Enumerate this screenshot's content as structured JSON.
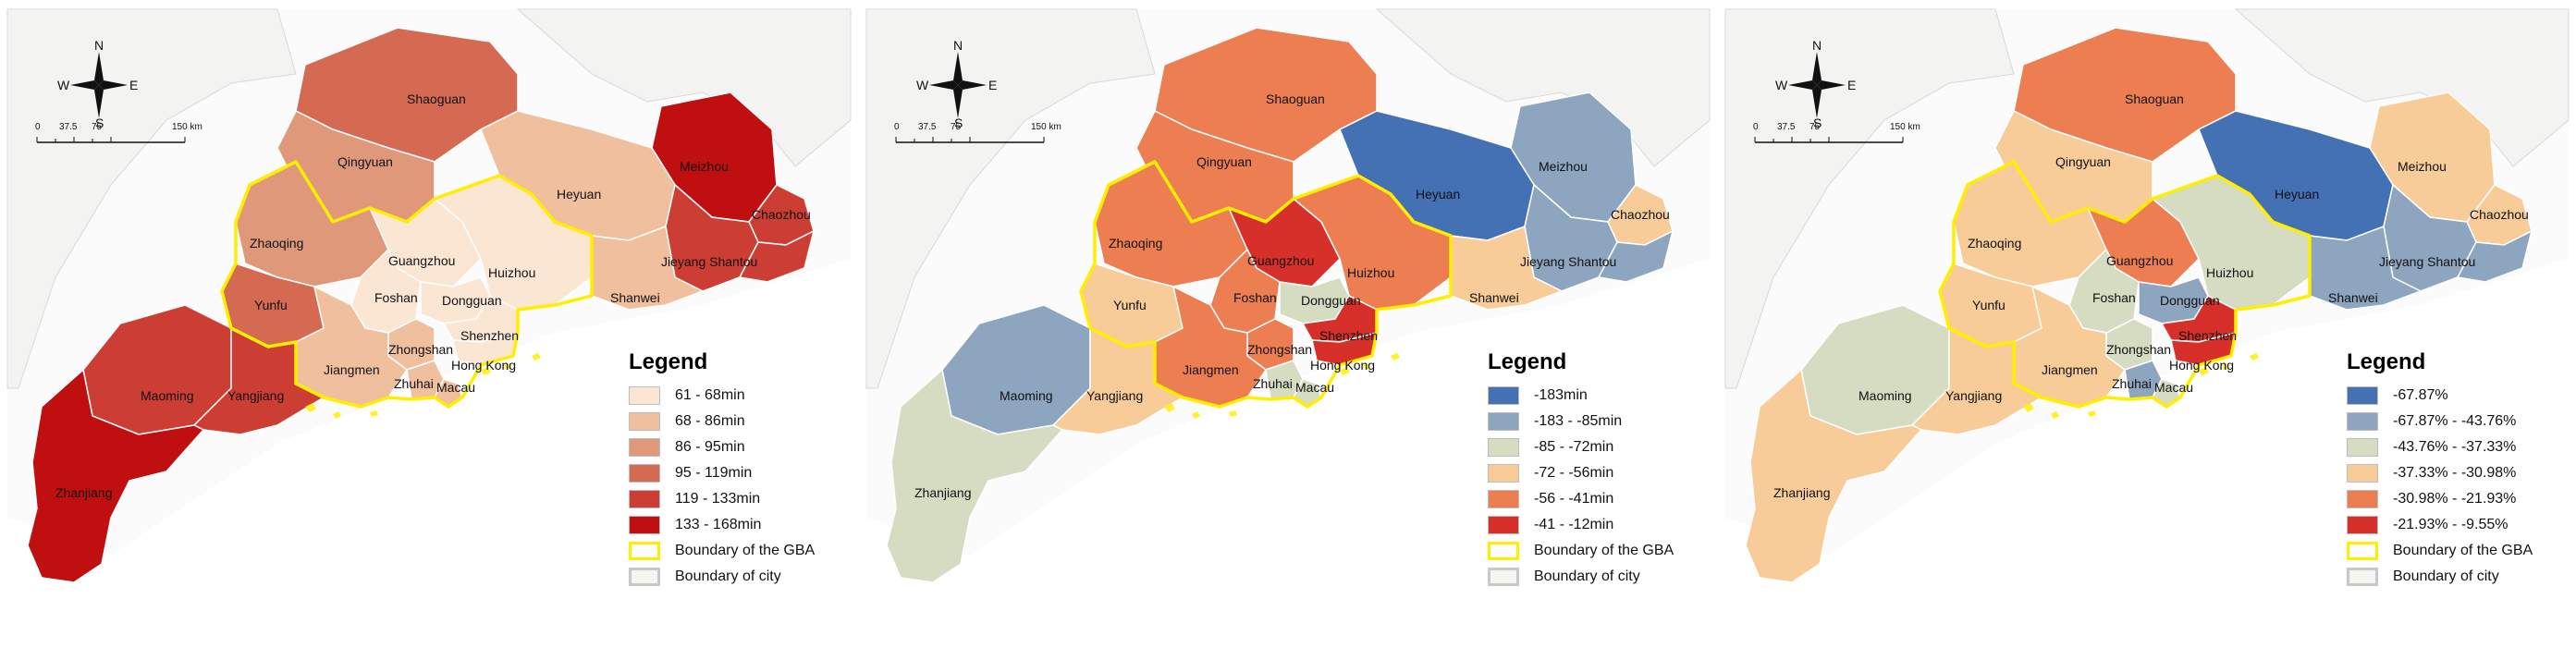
{
  "compass": {
    "n": "N",
    "s": "S",
    "e": "E",
    "w": "W"
  },
  "scale": {
    "t0": "0",
    "t1": "37.5",
    "t2": "75",
    "t3": "150 km"
  },
  "cities": {
    "shaoguan": "Shaoguan",
    "qingyuan": "Qingyuan",
    "meizhou": "Meizhou",
    "heyuan": "Heyuan",
    "chaozhou": "Chaozhou",
    "zhaoqing": "Zhaoqing",
    "guangzhou": "Guangzhou",
    "huizhou": "Huizhou",
    "jieyang_shantou": "Jieyang Shantou",
    "yunfu": "Yunfu",
    "foshan": "Foshan",
    "dongguan": "Dongguan",
    "shanwei": "Shanwei",
    "zhongshan": "Zhongshan",
    "shenzhen": "Shenzhen",
    "jiangmen": "Jiangmen",
    "zhuhai": "Zhuhai",
    "hongkong": "Hong Kong",
    "macau": "Macau",
    "maoming": "Maoming",
    "yangjiang": "Yangjiang",
    "zhanjiang": "Zhanjiang"
  },
  "maps": [
    {
      "legend_title": "Legend",
      "legend": [
        {
          "label": "61 - 68min",
          "color": "#fbe6d4"
        },
        {
          "label": "68 - 86min",
          "color": "#efbf9e"
        },
        {
          "label": "86 - 95min",
          "color": "#e0987b"
        },
        {
          "label": "95 - 119min",
          "color": "#d46a52"
        },
        {
          "label": "119 - 133min",
          "color": "#cc3e33"
        },
        {
          "label": "133 - 168min",
          "color": "#c00f10"
        },
        {
          "label": "Boundary of the GBA",
          "color": "#ffffff",
          "border": "#ffee00"
        },
        {
          "label": "Boundary of city",
          "color": "#f5f5f2",
          "border": "#c8c8c8"
        }
      ],
      "fills": {
        "shaoguan": "#d46a52",
        "qingyuan": "#e0987b",
        "meizhou": "#c00f10",
        "heyuan": "#efbf9e",
        "chaozhou": "#cc3e33",
        "jieyang": "#cc3e33",
        "shantou": "#cc3e33",
        "zhaoqing": "#e0987b",
        "guangzhou": "#fbe6d4",
        "huizhou": "#fbe6d4",
        "yunfu": "#d46a52",
        "foshan": "#fbe6d4",
        "dongguan": "#fbe6d4",
        "shanwei": "#efbf9e",
        "zhongshan": "#efbf9e",
        "shenzhen": "#fbe6d4",
        "jiangmen": "#efbf9e",
        "zhuhai": "#efbf9e",
        "hongkong": "#fbe6d4",
        "macau": "#efbf9e",
        "maoming": "#cc3e33",
        "yangjiang": "#cc3e33",
        "zhanjiang": "#c00f10"
      }
    },
    {
      "legend_title": "Legend",
      "legend": [
        {
          "label": "-183min",
          "color": "#4471b4"
        },
        {
          "label": "-183 - -85min",
          "color": "#8ea5c0"
        },
        {
          "label": "-85 - -72min",
          "color": "#d5dcc2"
        },
        {
          "label": "-72 - -56min",
          "color": "#f7cc98"
        },
        {
          "label": "-56 - -41min",
          "color": "#ec7e52"
        },
        {
          "label": "-41 - -12min",
          "color": "#d7302a"
        },
        {
          "label": "Boundary of the GBA",
          "color": "#ffffff",
          "border": "#ffee00"
        },
        {
          "label": "Boundary of city",
          "color": "#f5f5f2",
          "border": "#c8c8c8"
        }
      ],
      "fills": {
        "shaoguan": "#ec7e52",
        "qingyuan": "#ec7e52",
        "meizhou": "#8ea5c0",
        "heyuan": "#4471b4",
        "chaozhou": "#f7cc98",
        "jieyang": "#8ea5c0",
        "shantou": "#8ea5c0",
        "zhaoqing": "#ec7e52",
        "guangzhou": "#d7302a",
        "huizhou": "#ec7e52",
        "yunfu": "#f7cc98",
        "foshan": "#ec7e52",
        "dongguan": "#d5dcc2",
        "shanwei": "#f7cc98",
        "zhongshan": "#ec7e52",
        "shenzhen": "#d7302a",
        "jiangmen": "#ec7e52",
        "zhuhai": "#d5dcc2",
        "hongkong": "#d7302a",
        "macau": "#d5dcc2",
        "maoming": "#8ea5c0",
        "yangjiang": "#f7cc98",
        "zhanjiang": "#d5dcc2"
      }
    },
    {
      "legend_title": "Legend",
      "legend": [
        {
          "label": "-67.87%",
          "color": "#4471b4"
        },
        {
          "label": "-67.87% - -43.76%",
          "color": "#8ea5c0"
        },
        {
          "label": "-43.76% - -37.33%",
          "color": "#d5dcc2"
        },
        {
          "label": "-37.33% - -30.98%",
          "color": "#f7cc98"
        },
        {
          "label": "-30.98% - -21.93%",
          "color": "#ec7e52"
        },
        {
          "label": "-21.93% - -9.55%",
          "color": "#d7302a"
        },
        {
          "label": "Boundary of the GBA",
          "color": "#ffffff",
          "border": "#ffee00"
        },
        {
          "label": "Boundary of city",
          "color": "#f5f5f2",
          "border": "#c8c8c8"
        }
      ],
      "fills": {
        "shaoguan": "#ec7e52",
        "qingyuan": "#f7cc98",
        "meizhou": "#f7cc98",
        "heyuan": "#4471b4",
        "chaozhou": "#f7cc98",
        "jieyang": "#8ea5c0",
        "shantou": "#8ea5c0",
        "zhaoqing": "#f7cc98",
        "guangzhou": "#ec7e52",
        "huizhou": "#d5dcc2",
        "yunfu": "#f7cc98",
        "foshan": "#d5dcc2",
        "dongguan": "#8ea5c0",
        "shanwei": "#8ea5c0",
        "zhongshan": "#d5dcc2",
        "shenzhen": "#d7302a",
        "jiangmen": "#f7cc98",
        "zhuhai": "#8ea5c0",
        "hongkong": "#d7302a",
        "macau": "#d5dcc2",
        "maoming": "#d5dcc2",
        "yangjiang": "#f7cc98",
        "zhanjiang": "#f7cc98"
      }
    }
  ]
}
